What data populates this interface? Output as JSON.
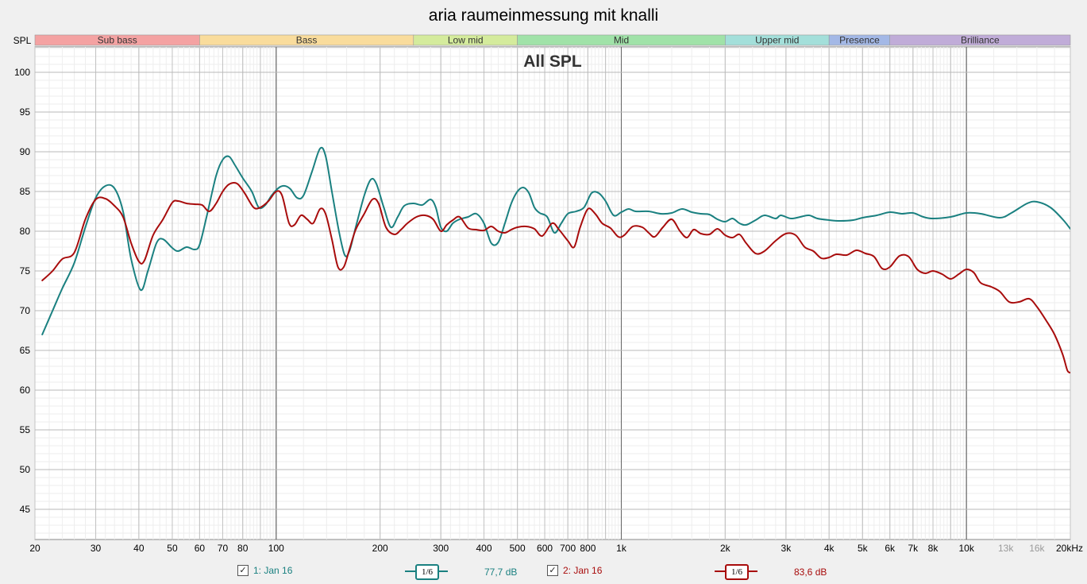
{
  "chart_data": {
    "type": "line",
    "title": "aria raumeinmessung mit knalli",
    "subtitle": "All SPL",
    "ylabel": "SPL",
    "xscale": "log",
    "xlim": [
      20,
      20000
    ],
    "ylim": [
      41,
      103
    ],
    "grid": true,
    "y_ticks": [
      100,
      95,
      90,
      85,
      80,
      75,
      70,
      65,
      60,
      55,
      50,
      45
    ],
    "x_ticks": [
      {
        "v": 20,
        "label": "20"
      },
      {
        "v": 30,
        "label": "30"
      },
      {
        "v": 40,
        "label": "40"
      },
      {
        "v": 50,
        "label": "50"
      },
      {
        "v": 60,
        "label": "60"
      },
      {
        "v": 70,
        "label": "70"
      },
      {
        "v": 80,
        "label": "80"
      },
      {
        "v": 100,
        "label": "100"
      },
      {
        "v": 200,
        "label": "200"
      },
      {
        "v": 300,
        "label": "300"
      },
      {
        "v": 400,
        "label": "400"
      },
      {
        "v": 500,
        "label": "500"
      },
      {
        "v": 600,
        "label": "600"
      },
      {
        "v": 700,
        "label": "700"
      },
      {
        "v": 800,
        "label": "800"
      },
      {
        "v": 1000,
        "label": "1k"
      },
      {
        "v": 2000,
        "label": "2k"
      },
      {
        "v": 3000,
        "label": "3k"
      },
      {
        "v": 4000,
        "label": "4k"
      },
      {
        "v": 5000,
        "label": "5k"
      },
      {
        "v": 6000,
        "label": "6k"
      },
      {
        "v": 7000,
        "label": "7k"
      },
      {
        "v": 8000,
        "label": "8k"
      },
      {
        "v": 10000,
        "label": "10k"
      },
      {
        "v": 13000,
        "label": "13k"
      },
      {
        "v": 16000,
        "label": "16k"
      },
      {
        "v": 20000,
        "label": "20kHz"
      }
    ],
    "bands": [
      {
        "name": "Sub bass",
        "from": 20,
        "to": 60,
        "color": "#f4a2a2"
      },
      {
        "name": "Bass",
        "from": 60,
        "to": 250,
        "color": "#f9dc9c"
      },
      {
        "name": "Low mid",
        "from": 250,
        "to": 500,
        "color": "#d4eb9c"
      },
      {
        "name": "Mid",
        "from": 500,
        "to": 2000,
        "color": "#a0e2a8"
      },
      {
        "name": "Upper mid",
        "from": 2000,
        "to": 4000,
        "color": "#a3dfda"
      },
      {
        "name": "Presence",
        "from": 4000,
        "to": 6000,
        "color": "#a3b8e6"
      },
      {
        "name": "Brilliance",
        "from": 6000,
        "to": 20000,
        "color": "#c0acd8"
      }
    ],
    "series": [
      {
        "name": "1: Jan 16",
        "color": "#1a8080",
        "level": "77,7 dB",
        "smoothing": "1/6",
        "points": [
          [
            21,
            67
          ],
          [
            22.5,
            70
          ],
          [
            24,
            72.8
          ],
          [
            26,
            76
          ],
          [
            28,
            80.5
          ],
          [
            30,
            84.2
          ],
          [
            32,
            85.7
          ],
          [
            34,
            85.4
          ],
          [
            36,
            82.5
          ],
          [
            38,
            76.5
          ],
          [
            40.5,
            72.6
          ],
          [
            42.5,
            75
          ],
          [
            45,
            78.5
          ],
          [
            47,
            79
          ],
          [
            50,
            77.9
          ],
          [
            52,
            77.5
          ],
          [
            55,
            78
          ],
          [
            58,
            77.7
          ],
          [
            60,
            78.3
          ],
          [
            63,
            82
          ],
          [
            67,
            87
          ],
          [
            70,
            89
          ],
          [
            73,
            89.4
          ],
          [
            76,
            88.3
          ],
          [
            80,
            86.7
          ],
          [
            85,
            85
          ],
          [
            89,
            83
          ],
          [
            93,
            83.3
          ],
          [
            97,
            84.5
          ],
          [
            102,
            85.5
          ],
          [
            106,
            85.7
          ],
          [
            110,
            85.3
          ],
          [
            115,
            84.2
          ],
          [
            120,
            84.5
          ],
          [
            127,
            87.5
          ],
          [
            134,
            90.4
          ],
          [
            139,
            89.5
          ],
          [
            145,
            85
          ],
          [
            152,
            80
          ],
          [
            158,
            77
          ],
          [
            163,
            77.5
          ],
          [
            170,
            80.5
          ],
          [
            180,
            84.5
          ],
          [
            188,
            86.5
          ],
          [
            195,
            86
          ],
          [
            205,
            83
          ],
          [
            215,
            80.5
          ],
          [
            225,
            81.8
          ],
          [
            235,
            83.2
          ],
          [
            250,
            83.5
          ],
          [
            265,
            83.3
          ],
          [
            280,
            84
          ],
          [
            290,
            83
          ],
          [
            300,
            80.5
          ],
          [
            312,
            80
          ],
          [
            325,
            81
          ],
          [
            340,
            81.5
          ],
          [
            360,
            81.8
          ],
          [
            380,
            82.2
          ],
          [
            400,
            81
          ],
          [
            420,
            78.5
          ],
          [
            440,
            78.6
          ],
          [
            460,
            81
          ],
          [
            480,
            83.5
          ],
          [
            500,
            85
          ],
          [
            520,
            85.5
          ],
          [
            540,
            84.8
          ],
          [
            560,
            83
          ],
          [
            580,
            82.3
          ],
          [
            610,
            81.8
          ],
          [
            640,
            79.8
          ],
          [
            670,
            81
          ],
          [
            700,
            82.2
          ],
          [
            740,
            82.5
          ],
          [
            780,
            83
          ],
          [
            820,
            84.8
          ],
          [
            860,
            84.8
          ],
          [
            900,
            83.8
          ],
          [
            950,
            82
          ],
          [
            1000,
            82.4
          ],
          [
            1050,
            82.8
          ],
          [
            1100,
            82.5
          ],
          [
            1200,
            82.5
          ],
          [
            1300,
            82.2
          ],
          [
            1400,
            82.3
          ],
          [
            1500,
            82.8
          ],
          [
            1600,
            82.4
          ],
          [
            1700,
            82.2
          ],
          [
            1800,
            82.1
          ],
          [
            1900,
            81.5
          ],
          [
            2000,
            81.2
          ],
          [
            2100,
            81.6
          ],
          [
            2200,
            81
          ],
          [
            2300,
            80.8
          ],
          [
            2450,
            81.4
          ],
          [
            2600,
            82
          ],
          [
            2800,
            81.6
          ],
          [
            2900,
            82
          ],
          [
            3100,
            81.6
          ],
          [
            3300,
            81.8
          ],
          [
            3500,
            82
          ],
          [
            3700,
            81.6
          ],
          [
            4000,
            81.4
          ],
          [
            4300,
            81.3
          ],
          [
            4700,
            81.4
          ],
          [
            5000,
            81.7
          ],
          [
            5500,
            82
          ],
          [
            6000,
            82.4
          ],
          [
            6500,
            82.2
          ],
          [
            7000,
            82.3
          ],
          [
            7500,
            81.8
          ],
          [
            8000,
            81.6
          ],
          [
            9000,
            81.8
          ],
          [
            10000,
            82.3
          ],
          [
            11000,
            82.2
          ],
          [
            12500,
            81.7
          ],
          [
            13500,
            82.3
          ],
          [
            15000,
            83.5
          ],
          [
            16000,
            83.7
          ],
          [
            17500,
            83
          ],
          [
            19000,
            81.5
          ],
          [
            20000,
            80.3
          ]
        ]
      },
      {
        "name": "2: Jan 16",
        "color": "#a80c0c",
        "level": "83,6 dB",
        "smoothing": "1/6",
        "points": [
          [
            21,
            73.8
          ],
          [
            22.5,
            75
          ],
          [
            24,
            76.5
          ],
          [
            26,
            77.3
          ],
          [
            28,
            81.5
          ],
          [
            30,
            84
          ],
          [
            32,
            84.1
          ],
          [
            34,
            83.2
          ],
          [
            36,
            81.8
          ],
          [
            38,
            78.5
          ],
          [
            40,
            76.2
          ],
          [
            41.5,
            76.3
          ],
          [
            44,
            79.5
          ],
          [
            47,
            81.5
          ],
          [
            50,
            83.6
          ],
          [
            52,
            83.8
          ],
          [
            55,
            83.5
          ],
          [
            58,
            83.4
          ],
          [
            61,
            83.3
          ],
          [
            64,
            82.5
          ],
          [
            67,
            83.5
          ],
          [
            70,
            85
          ],
          [
            73,
            85.9
          ],
          [
            77,
            86
          ],
          [
            81,
            84.8
          ],
          [
            86,
            83
          ],
          [
            90,
            83
          ],
          [
            95,
            83.8
          ],
          [
            100,
            85
          ],
          [
            104,
            84.5
          ],
          [
            109,
            81
          ],
          [
            113,
            80.8
          ],
          [
            118,
            82
          ],
          [
            123,
            81.5
          ],
          [
            128,
            81
          ],
          [
            134,
            82.8
          ],
          [
            139,
            82.2
          ],
          [
            145,
            79
          ],
          [
            151,
            75.5
          ],
          [
            157,
            75.5
          ],
          [
            163,
            77.7
          ],
          [
            170,
            80.2
          ],
          [
            180,
            82.2
          ],
          [
            190,
            84
          ],
          [
            198,
            83.5
          ],
          [
            208,
            80.5
          ],
          [
            220,
            79.6
          ],
          [
            230,
            80.2
          ],
          [
            240,
            81
          ],
          [
            255,
            81.8
          ],
          [
            270,
            82
          ],
          [
            285,
            81.5
          ],
          [
            300,
            80
          ],
          [
            312,
            80.8
          ],
          [
            325,
            81.4
          ],
          [
            340,
            81.8
          ],
          [
            360,
            80.4
          ],
          [
            380,
            80.2
          ],
          [
            400,
            80.1
          ],
          [
            420,
            80.6
          ],
          [
            440,
            80
          ],
          [
            460,
            79.8
          ],
          [
            480,
            80.2
          ],
          [
            500,
            80.5
          ],
          [
            530,
            80.6
          ],
          [
            560,
            80.3
          ],
          [
            590,
            79.4
          ],
          [
            630,
            81
          ],
          [
            660,
            80.2
          ],
          [
            700,
            78.8
          ],
          [
            730,
            78
          ],
          [
            760,
            80.5
          ],
          [
            800,
            82.8
          ],
          [
            840,
            82.2
          ],
          [
            880,
            81
          ],
          [
            930,
            80.4
          ],
          [
            980,
            79.3
          ],
          [
            1020,
            79.5
          ],
          [
            1080,
            80.6
          ],
          [
            1150,
            80.5
          ],
          [
            1200,
            79.8
          ],
          [
            1250,
            79.3
          ],
          [
            1320,
            80.5
          ],
          [
            1400,
            81.5
          ],
          [
            1480,
            80
          ],
          [
            1550,
            79.2
          ],
          [
            1620,
            80.2
          ],
          [
            1700,
            79.7
          ],
          [
            1800,
            79.6
          ],
          [
            1900,
            80.3
          ],
          [
            2000,
            79.5
          ],
          [
            2100,
            79.2
          ],
          [
            2200,
            79.6
          ],
          [
            2300,
            78.5
          ],
          [
            2450,
            77.2
          ],
          [
            2600,
            77.5
          ],
          [
            2800,
            78.8
          ],
          [
            3000,
            79.7
          ],
          [
            3200,
            79.5
          ],
          [
            3400,
            78
          ],
          [
            3600,
            77.5
          ],
          [
            3800,
            76.6
          ],
          [
            4000,
            76.7
          ],
          [
            4200,
            77.1
          ],
          [
            4500,
            77
          ],
          [
            4800,
            77.6
          ],
          [
            5100,
            77.2
          ],
          [
            5400,
            76.8
          ],
          [
            5700,
            75.3
          ],
          [
            6000,
            75.5
          ],
          [
            6400,
            76.9
          ],
          [
            6800,
            76.8
          ],
          [
            7200,
            75.2
          ],
          [
            7600,
            74.7
          ],
          [
            8000,
            75
          ],
          [
            8500,
            74.6
          ],
          [
            9000,
            74
          ],
          [
            9500,
            74.6
          ],
          [
            10000,
            75.2
          ],
          [
            10500,
            74.8
          ],
          [
            11000,
            73.5
          ],
          [
            11800,
            73
          ],
          [
            12500,
            72.4
          ],
          [
            13300,
            71.1
          ],
          [
            14200,
            71.1
          ],
          [
            15200,
            71.5
          ],
          [
            16000,
            70.5
          ],
          [
            17000,
            68.8
          ],
          [
            18000,
            67
          ],
          [
            19000,
            64.5
          ],
          [
            19600,
            62.5
          ],
          [
            20000,
            62.2
          ]
        ]
      }
    ]
  }
}
